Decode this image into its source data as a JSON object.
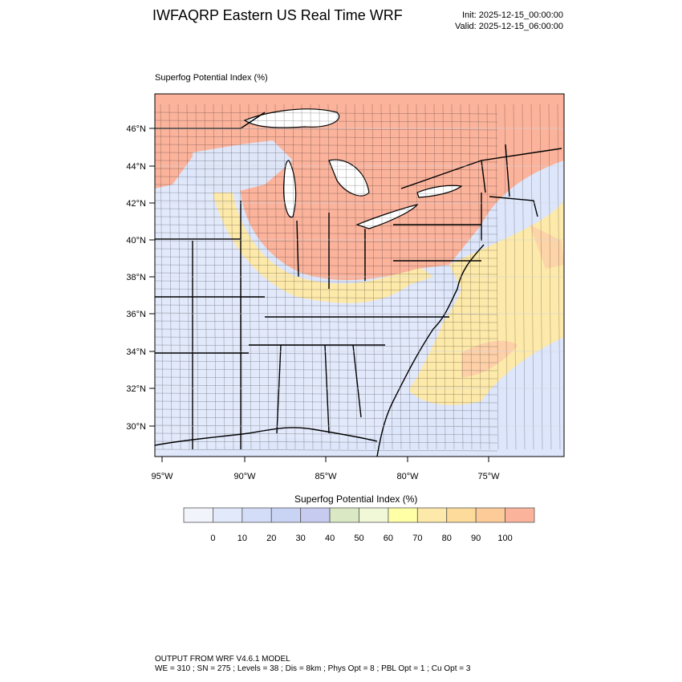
{
  "header": {
    "title": "IWFAQRP Eastern US Real Time WRF",
    "init": "Init: 2025-12-15_00:00:00",
    "valid": "Valid: 2025-12-15_06:00:00"
  },
  "map": {
    "field_label": "Superfog Potential Index   (%)",
    "lat_ticks": [
      "30°N",
      "32°N",
      "34°N",
      "36°N",
      "38°N",
      "40°N",
      "42°N",
      "44°N",
      "46°N"
    ],
    "lon_ticks": [
      "95°W",
      "90°W",
      "85°W",
      "80°W",
      "75°W"
    ]
  },
  "colorbar": {
    "title": "Superfog Potential Index  (%)",
    "labels": [
      "0",
      "10",
      "20",
      "30",
      "40",
      "50",
      "60",
      "70",
      "80",
      "90",
      "100"
    ],
    "colors": [
      "#f2f4fb",
      "#e2e9fb",
      "#d4ddf8",
      "#c9d3f4",
      "#c6cbef",
      "#dbe8c4",
      "#f1f8d8",
      "#ffffa6",
      "#fde9a9",
      "#fddb9a",
      "#fdcb98",
      "#fbb39c"
    ]
  },
  "footer": {
    "line1": "OUTPUT FROM WRF V4.6.1 MODEL",
    "line2": "WE = 310 ; SN = 275 ; Levels = 38 ; Dis = 8km ; Phys Opt = 8 ; PBL Opt = 1 ; Cu Opt = 3"
  },
  "colors": {
    "land_low": "#e2e9fb",
    "ocean": "#dde6fa",
    "high": "#fbb39c",
    "mid": "#fde9a9"
  }
}
